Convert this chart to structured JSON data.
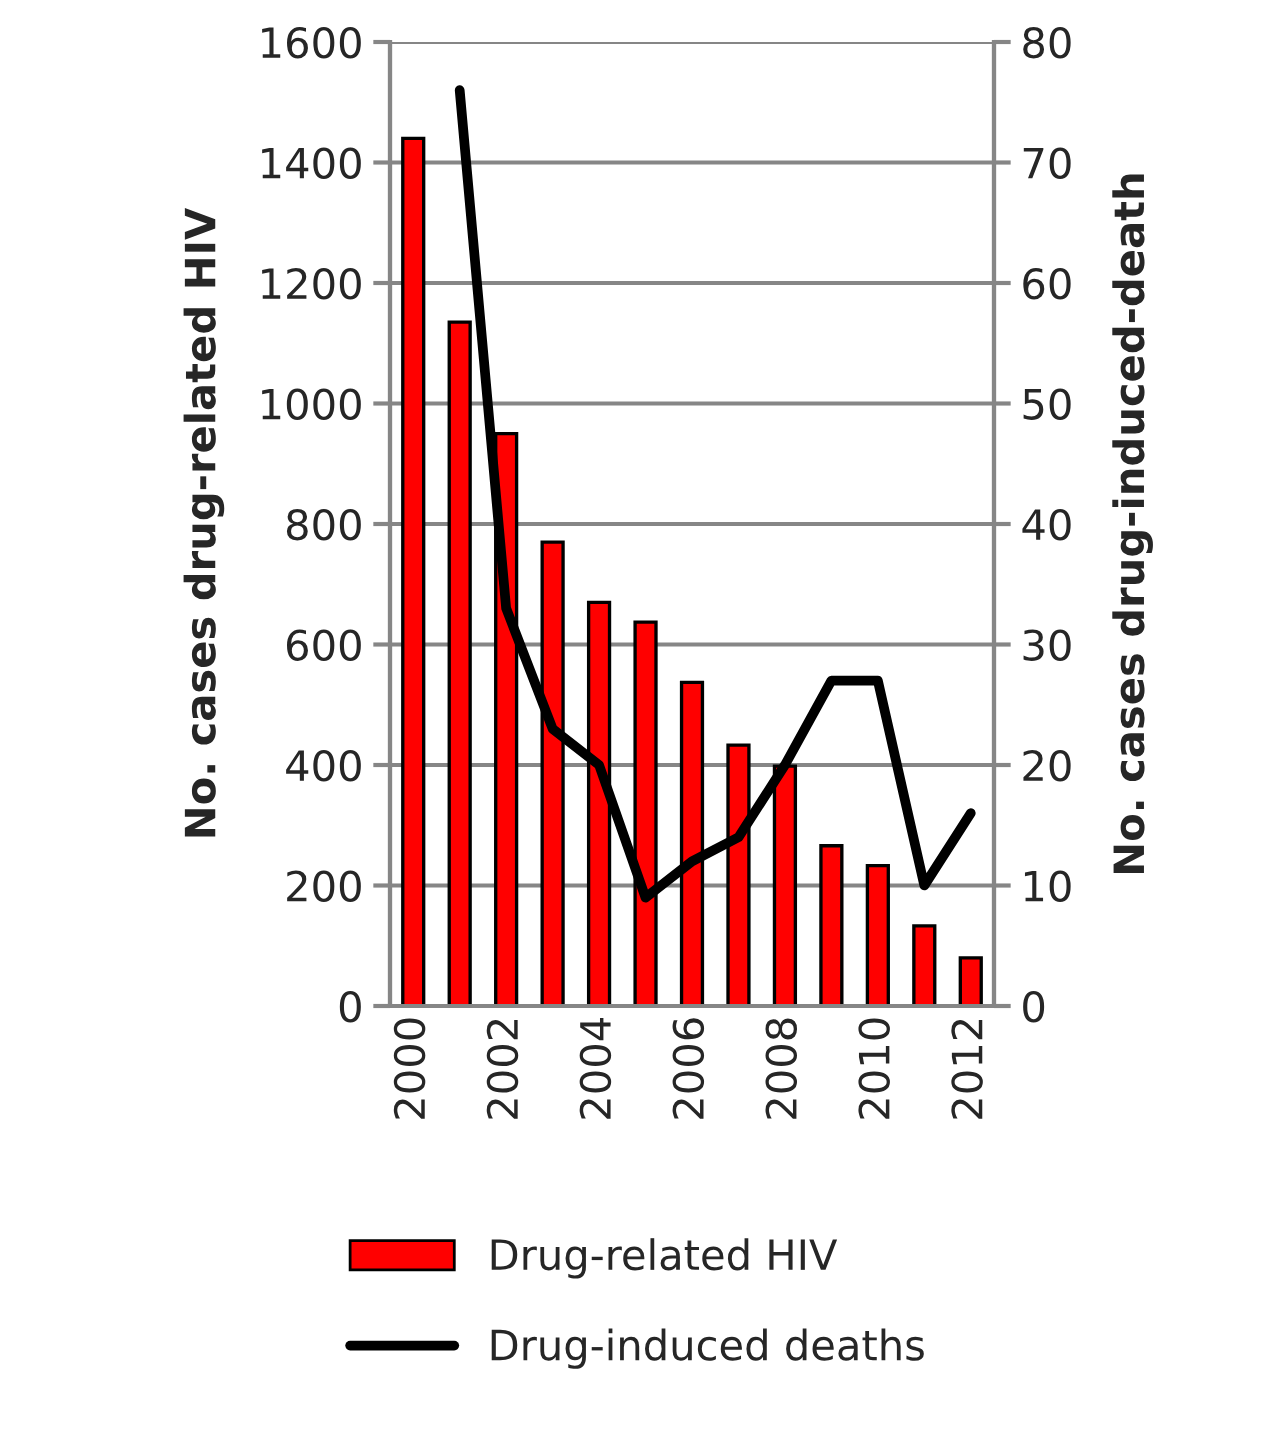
{
  "chart_data": {
    "type": "bar",
    "categories": [
      "2000",
      null,
      "2002",
      null,
      "2004",
      null,
      "2006",
      null,
      "2008",
      null,
      "2010",
      null,
      "2012"
    ],
    "series": [
      {
        "name": "Drug-related HIV",
        "color": "#ff0000",
        "values": [
          1440,
          1135,
          950,
          770,
          670,
          637,
          537,
          433,
          398,
          266,
          233,
          133,
          80
        ]
      },
      {
        "name": "Drug-induced deaths",
        "type": "line",
        "axis": "y2",
        "color": "#000000",
        "values": [
          null,
          76,
          33,
          23,
          20,
          9,
          12,
          14,
          20,
          27,
          27,
          10,
          16
        ]
      }
    ],
    "ylabel": "No. cases drug-related HIV",
    "y2label": "No. cases drug-induced-death",
    "ylim": [
      0,
      1600
    ],
    "yticks": [
      0,
      200,
      400,
      600,
      800,
      1000,
      1200,
      1400,
      1600
    ],
    "y2lim": [
      0,
      80
    ],
    "y2ticks": [
      0,
      10,
      20,
      30,
      40,
      50,
      60,
      70,
      80
    ],
    "grid": "y",
    "legend": "bottom"
  }
}
